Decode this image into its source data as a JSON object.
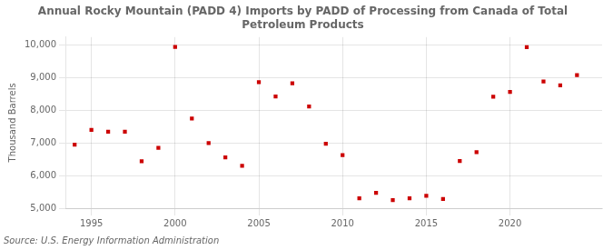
{
  "chart_data": {
    "type": "scatter",
    "title": "Annual Rocky Mountain (PADD 4) Imports by PADD of Processing from Canada of Total\nPetroleum Products",
    "ylabel": "Thousand Barrels",
    "source": "Source: U.S. Energy Information Administration",
    "color": "#cc0000",
    "marker": "square",
    "grid": true,
    "xlim": [
      1993.5,
      2025.5
    ],
    "ylim": [
      5000,
      10250
    ],
    "xticks": [
      1995,
      2000,
      2005,
      2010,
      2015,
      2020
    ],
    "yticks": [
      {
        "value": 5000,
        "label": "5,000"
      },
      {
        "value": 6000,
        "label": "6,000"
      },
      {
        "value": 7000,
        "label": "7,000"
      },
      {
        "value": 8000,
        "label": "8,000"
      },
      {
        "value": 9000,
        "label": "9,000"
      },
      {
        "value": 10000,
        "label": "10,000"
      }
    ],
    "x": [
      1994,
      1995,
      1996,
      1997,
      1998,
      1999,
      2000,
      2001,
      2002,
      2003,
      2004,
      2005,
      2006,
      2007,
      2008,
      2009,
      2010,
      2011,
      2012,
      2013,
      2014,
      2015,
      2016,
      2017,
      2018,
      2019,
      2020,
      2021,
      2022,
      2023,
      2024
    ],
    "values": [
      6950,
      7400,
      7350,
      7350,
      6440,
      6850,
      9950,
      7750,
      7000,
      6560,
      6300,
      8870,
      8430,
      8830,
      8120,
      6980,
      6630,
      5300,
      5470,
      5250,
      5300,
      5380,
      5280,
      6450,
      6720,
      8420,
      8570,
      9940,
      8890,
      8770,
      9080
    ]
  }
}
